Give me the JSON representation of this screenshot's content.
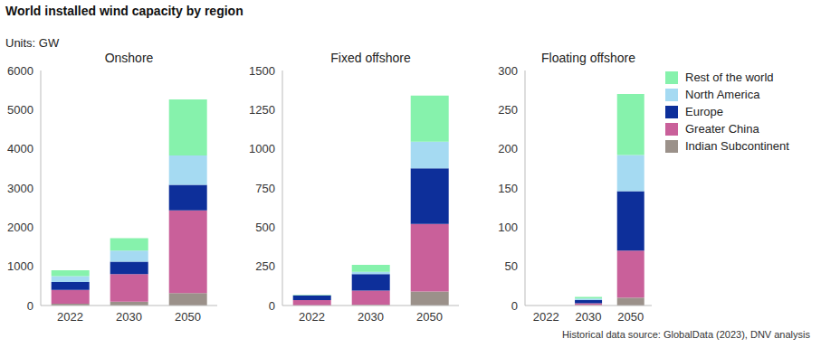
{
  "title": "World installed wind capacity by region",
  "subtitle": "Units: GW",
  "annotations": [
    "Historical data source: GlobalData (2023), DNV analysis"
  ],
  "legend": "right",
  "chart_data": [
    {
      "type": "bar",
      "title": "Onshore",
      "stacked": true,
      "categories": [
        "2022",
        "2030",
        "2050"
      ],
      "ylim": [
        0,
        6000
      ],
      "yticks": [
        0,
        1000,
        2000,
        3000,
        4000,
        5000,
        6000
      ],
      "series": [
        {
          "name": "Indian Subcontinent",
          "color": "#9b918a",
          "values": [
            45,
            100,
            320
          ]
        },
        {
          "name": "Greater China",
          "color": "#c9609a",
          "values": [
            355,
            700,
            2110
          ]
        },
        {
          "name": "Europe",
          "color": "#0d2f9a",
          "values": [
            200,
            320,
            650
          ]
        },
        {
          "name": "North America",
          "color": "#a5daf2",
          "values": [
            150,
            280,
            750
          ]
        },
        {
          "name": "Rest of the world",
          "color": "#86f2ac",
          "values": [
            150,
            320,
            1430
          ]
        }
      ]
    },
    {
      "type": "bar",
      "title": "Fixed offshore",
      "stacked": true,
      "categories": [
        "2022",
        "2030",
        "2050"
      ],
      "ylim": [
        0,
        1500
      ],
      "yticks": [
        0,
        250,
        500,
        750,
        1000,
        1250,
        1500
      ],
      "series": [
        {
          "name": "Indian Subcontinent",
          "color": "#9b918a",
          "values": [
            0,
            5,
            90
          ]
        },
        {
          "name": "Greater China",
          "color": "#c9609a",
          "values": [
            35,
            90,
            430
          ]
        },
        {
          "name": "Europe",
          "color": "#0d2f9a",
          "values": [
            30,
            105,
            355
          ]
        },
        {
          "name": "North America",
          "color": "#a5daf2",
          "values": [
            0.5,
            15,
            170
          ]
        },
        {
          "name": "Rest of the world",
          "color": "#86f2ac",
          "values": [
            2,
            45,
            295
          ]
        }
      ]
    },
    {
      "type": "bar",
      "title": "Floating offshore",
      "stacked": true,
      "categories": [
        "2022",
        "2030",
        "2050"
      ],
      "ylim": [
        0,
        300
      ],
      "yticks": [
        0,
        50,
        100,
        150,
        200,
        250,
        300
      ],
      "series": [
        {
          "name": "Indian Subcontinent",
          "color": "#9b918a",
          "values": [
            0,
            0.5,
            10
          ]
        },
        {
          "name": "Greater China",
          "color": "#c9609a",
          "values": [
            0,
            2.5,
            60
          ]
        },
        {
          "name": "Europe",
          "color": "#0d2f9a",
          "values": [
            0,
            4,
            76
          ]
        },
        {
          "name": "North America",
          "color": "#a5daf2",
          "values": [
            0,
            2,
            46
          ]
        },
        {
          "name": "Rest of the world",
          "color": "#86f2ac",
          "values": [
            0,
            2,
            78
          ]
        }
      ]
    }
  ]
}
